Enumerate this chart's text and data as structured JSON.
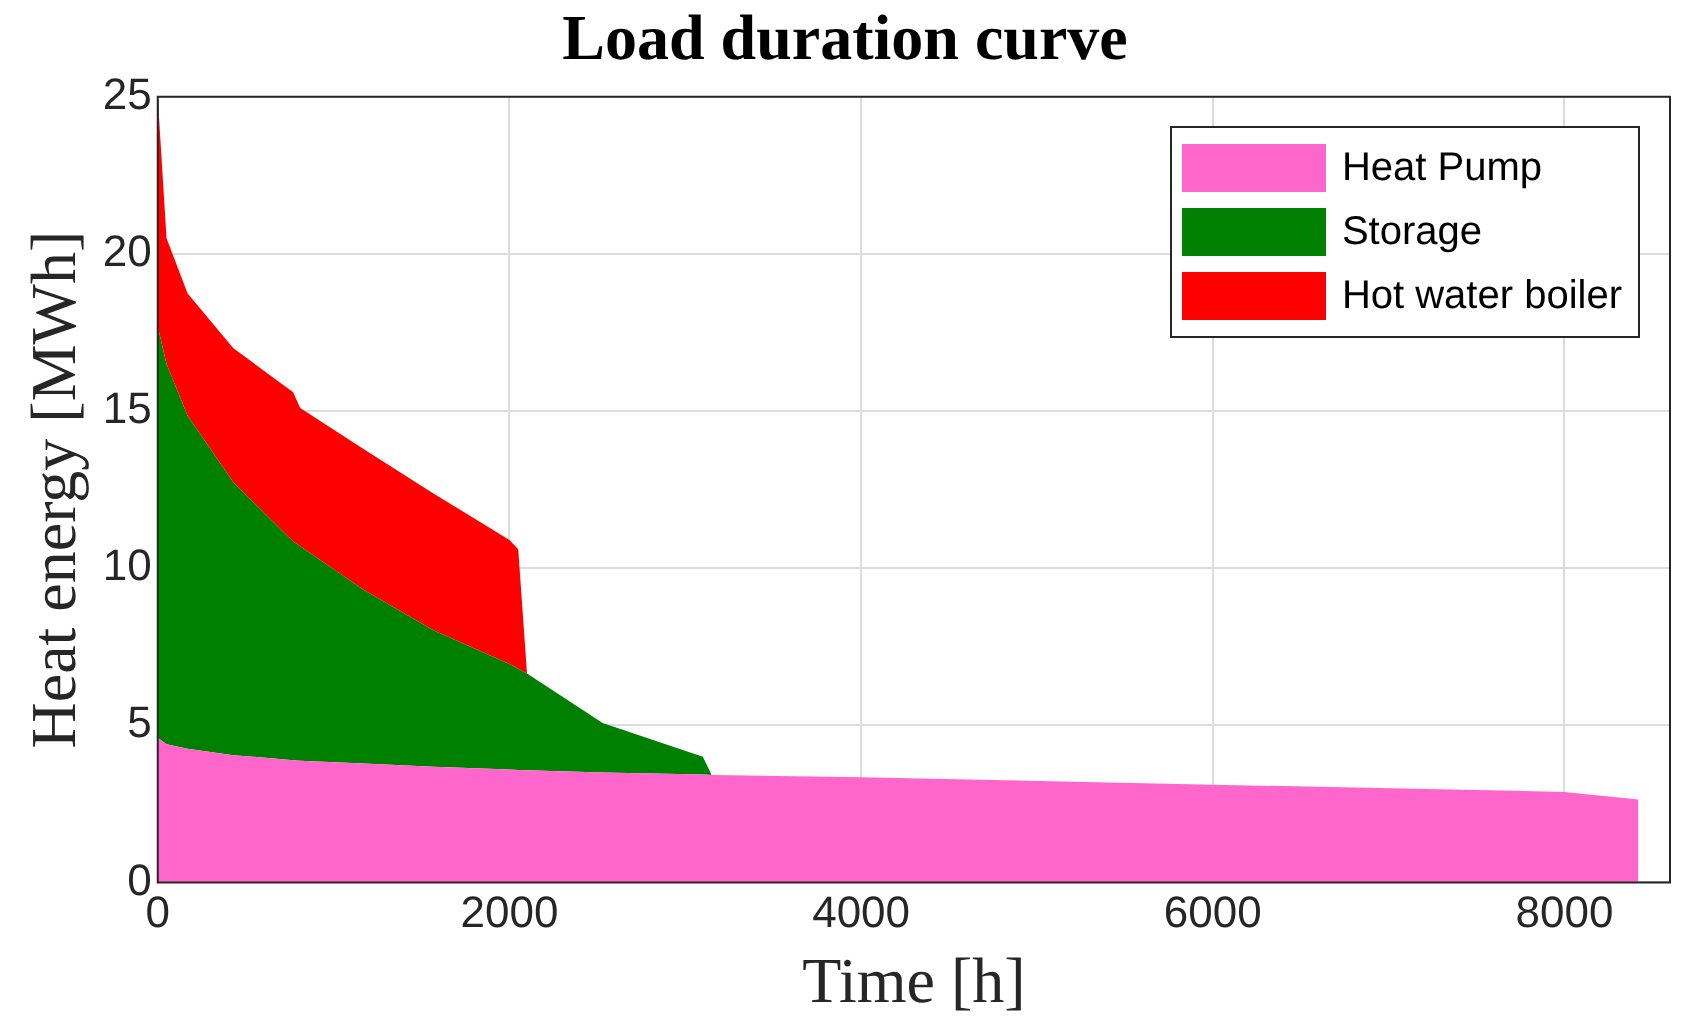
{
  "chart_data": {
    "type": "area",
    "title": "Load duration curve",
    "xlabel": "Time [h]",
    "ylabel": "Heat energy [MWh]",
    "x": [
      0,
      50,
      170,
      430,
      770,
      810,
      1170,
      1570,
      2000,
      2050,
      2100,
      2530,
      3100,
      3150,
      4000,
      6000,
      8000,
      8420
    ],
    "stacked": true,
    "series": [
      {
        "name": "Heat Pump",
        "color": "#ff66cc",
        "values": [
          4.6,
          4.4,
          4.25,
          4.05,
          3.89,
          3.87,
          3.78,
          3.68,
          3.59,
          3.58,
          3.57,
          3.5,
          3.43,
          3.42,
          3.35,
          3.11,
          2.88,
          2.64
        ]
      },
      {
        "name": "Storage",
        "color": "#008000",
        "values": [
          13.1,
          12.1,
          10.6,
          8.68,
          6.96,
          6.83,
          5.53,
          4.34,
          3.36,
          3.22,
          3.08,
          1.57,
          0.57,
          0,
          null,
          null,
          null,
          null
        ]
      },
      {
        "name": "Hot water boiler",
        "color": "#ff0000",
        "values": [
          7.3,
          4.0,
          3.89,
          4.27,
          4.75,
          4.4,
          4.48,
          4.35,
          3.95,
          3.8,
          0,
          null,
          null,
          null,
          null,
          null,
          null,
          null
        ]
      }
    ],
    "xlim": [
      0,
      8600
    ],
    "xticks": [
      0,
      2000,
      4000,
      6000,
      8000
    ],
    "ylim": [
      0,
      25
    ],
    "yticks": [
      0,
      5,
      10,
      15,
      20,
      25
    ],
    "grid": true,
    "legend": "top right"
  }
}
